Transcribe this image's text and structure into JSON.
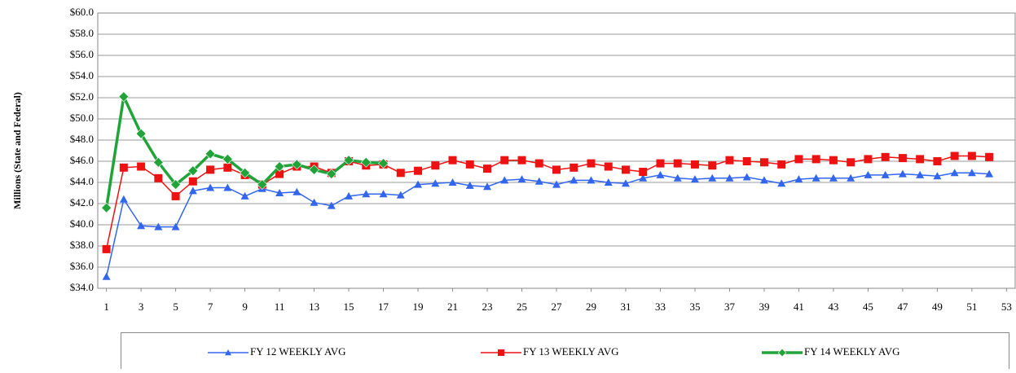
{
  "chart_data": {
    "type": "line",
    "y_label": "Millions (State and Federal)",
    "x": [
      1,
      2,
      3,
      4,
      5,
      6,
      7,
      8,
      9,
      10,
      11,
      12,
      13,
      14,
      15,
      16,
      17,
      18,
      19,
      20,
      21,
      22,
      23,
      24,
      25,
      26,
      27,
      28,
      29,
      30,
      31,
      32,
      33,
      34,
      35,
      36,
      37,
      38,
      39,
      40,
      41,
      42,
      43,
      44,
      45,
      46,
      47,
      48,
      49,
      50,
      51,
      52
    ],
    "series": [
      {
        "name": "FY 12 WEEKLY AVG",
        "color": "#3366ee",
        "marker": "triangle",
        "values": [
          35.1,
          42.4,
          39.9,
          39.8,
          39.8,
          43.2,
          43.5,
          43.5,
          42.7,
          43.4,
          43.0,
          43.1,
          42.1,
          41.8,
          42.7,
          42.9,
          42.9,
          42.8,
          43.8,
          43.9,
          44.0,
          43.7,
          43.6,
          44.2,
          44.3,
          44.1,
          43.8,
          44.2,
          44.2,
          44.0,
          43.9,
          44.4,
          44.7,
          44.4,
          44.3,
          44.4,
          44.4,
          44.5,
          44.2,
          43.9,
          44.3,
          44.4,
          44.4,
          44.4,
          44.7,
          44.7,
          44.8,
          44.7,
          44.6,
          44.9,
          44.9,
          44.8
        ]
      },
      {
        "name": "FY 13 WEEKLY AVG",
        "color": "#ee1111",
        "marker": "square",
        "values": [
          37.7,
          45.4,
          45.5,
          44.4,
          42.7,
          44.1,
          45.2,
          45.4,
          44.7,
          43.8,
          44.8,
          45.5,
          45.5,
          44.9,
          46.0,
          45.6,
          45.7,
          44.9,
          45.1,
          45.6,
          46.1,
          45.7,
          45.3,
          46.1,
          46.1,
          45.8,
          45.2,
          45.4,
          45.8,
          45.5,
          45.2,
          45.0,
          45.8,
          45.8,
          45.7,
          45.6,
          46.1,
          46.0,
          45.9,
          45.7,
          46.2,
          46.2,
          46.1,
          45.9,
          46.2,
          46.4,
          46.3,
          46.2,
          46.0,
          46.5,
          46.5,
          46.4
        ]
      },
      {
        "name": "FY 14 WEEKLY AVG",
        "color": "#22a33a",
        "marker": "diamond",
        "values": [
          41.6,
          52.1,
          48.6,
          45.9,
          43.8,
          45.1,
          46.7,
          46.2,
          44.9,
          43.8,
          45.5,
          45.7,
          45.2,
          44.8,
          46.1,
          45.9,
          45.8,
          null,
          null,
          null,
          null,
          null,
          null,
          null,
          null,
          null,
          null,
          null,
          null,
          null,
          null,
          null,
          null,
          null,
          null,
          null,
          null,
          null,
          null,
          null,
          null,
          null,
          null,
          null,
          null,
          null,
          null,
          null,
          null,
          null,
          null,
          null
        ]
      }
    ],
    "xlim": [
      0.5,
      53.5
    ],
    "xticks": [
      1,
      3,
      5,
      7,
      9,
      11,
      13,
      15,
      17,
      19,
      21,
      23,
      25,
      27,
      29,
      31,
      33,
      35,
      37,
      39,
      41,
      43,
      45,
      47,
      49,
      51,
      53
    ],
    "ylim": [
      34,
      60
    ],
    "yticks": [
      {
        "value": 34,
        "label": "$34.0"
      },
      {
        "value": 36,
        "label": "$36.0"
      },
      {
        "value": 38,
        "label": "$38.0"
      },
      {
        "value": 40,
        "label": "$40.0"
      },
      {
        "value": 42,
        "label": "$42.0"
      },
      {
        "value": 44,
        "label": "$44.0"
      },
      {
        "value": 46,
        "label": "$46.0"
      },
      {
        "value": 48,
        "label": "$48.0"
      },
      {
        "value": 50,
        "label": "$50.0"
      },
      {
        "value": 52,
        "label": "$52.0"
      },
      {
        "value": 54,
        "label": "$54.0"
      },
      {
        "value": 56,
        "label": "$56.0"
      },
      {
        "value": 58,
        "label": "$58.0"
      },
      {
        "value": 60,
        "label": "$60.0"
      }
    ],
    "grid": true
  }
}
